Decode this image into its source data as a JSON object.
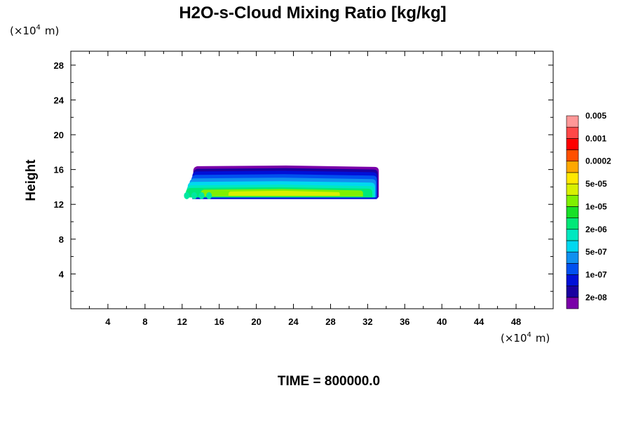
{
  "chart_data": {
    "type": "heatmap",
    "title": "H2O-s-Cloud Mixing Ratio [kg/kg]",
    "ylabel": "Height",
    "x_unit": {
      "prefix": "(×10",
      "exponent": "4",
      "suffix": "m)"
    },
    "y_unit": {
      "prefix": "(×10",
      "exponent": "4",
      "suffix": "m)"
    },
    "xlim": [
      0,
      52
    ],
    "ylim": [
      0,
      29.6
    ],
    "x_ticks": [
      4,
      8,
      12,
      16,
      20,
      24,
      28,
      32,
      36,
      40,
      44,
      48
    ],
    "x_tick_labels": [
      "4",
      "8",
      "12",
      "16",
      "20",
      "24",
      "28",
      "32",
      "36",
      "40",
      "44",
      "48"
    ],
    "y_ticks": [
      4,
      8,
      12,
      16,
      20,
      24,
      28
    ],
    "y_tick_labels": [
      "4",
      "8",
      "12",
      "16",
      "20",
      "24",
      "28"
    ],
    "colorbar": {
      "colors": [
        "#7a00a8",
        "#1a00a0",
        "#0010d8",
        "#0050f0",
        "#1090f0",
        "#00d8f0",
        "#00e8c0",
        "#00e878",
        "#18e028",
        "#80f000",
        "#d8f000",
        "#ffe800",
        "#ffa800",
        "#ff5000",
        "#ff0000",
        "#ff4848",
        "#ff9898"
      ],
      "labels": [
        "2e-08",
        "1e-07",
        "5e-07",
        "2e-06",
        "1e-05",
        "5e-05",
        "0.0002",
        "0.001",
        "0.005"
      ]
    },
    "cloud": {
      "x_range": [
        12.4,
        33.2
      ],
      "base_height": 12.7,
      "top_height": 16.0,
      "layers": [
        {
          "color": "#7a00a8",
          "x0": 13.2,
          "x1": 33.2,
          "y0": 12.8,
          "y1": 16.3
        },
        {
          "color": "#1a00a0",
          "x0": 13.2,
          "x1": 33.1,
          "y0": 12.7,
          "y1": 16.0
        },
        {
          "color": "#0010d8",
          "x0": 13.1,
          "x1": 33.0,
          "y0": 12.6,
          "y1": 15.7
        },
        {
          "color": "#0050f0",
          "x0": 13.0,
          "x1": 33.0,
          "y0": 12.8,
          "y1": 15.3
        },
        {
          "color": "#1090f0",
          "x0": 12.8,
          "x1": 32.9,
          "y0": 12.8,
          "y1": 14.9
        },
        {
          "color": "#00d8f0",
          "x0": 12.6,
          "x1": 32.8,
          "y0": 12.8,
          "y1": 14.5
        },
        {
          "color": "#00e8c0",
          "x0": 12.5,
          "x1": 32.7,
          "y0": 12.8,
          "y1": 14.1
        },
        {
          "color": "#00e878",
          "x0": 12.4,
          "x1": 32.5,
          "y0": 12.8,
          "y1": 13.8
        },
        {
          "color": "#80f000",
          "x0": 14.0,
          "x1": 31.5,
          "y0": 12.9,
          "y1": 13.6
        },
        {
          "color": "#d8f000",
          "x0": 17.0,
          "x1": 29.0,
          "y0": 13.0,
          "y1": 13.4
        }
      ]
    },
    "time_label": "TIME = 800000.0"
  }
}
